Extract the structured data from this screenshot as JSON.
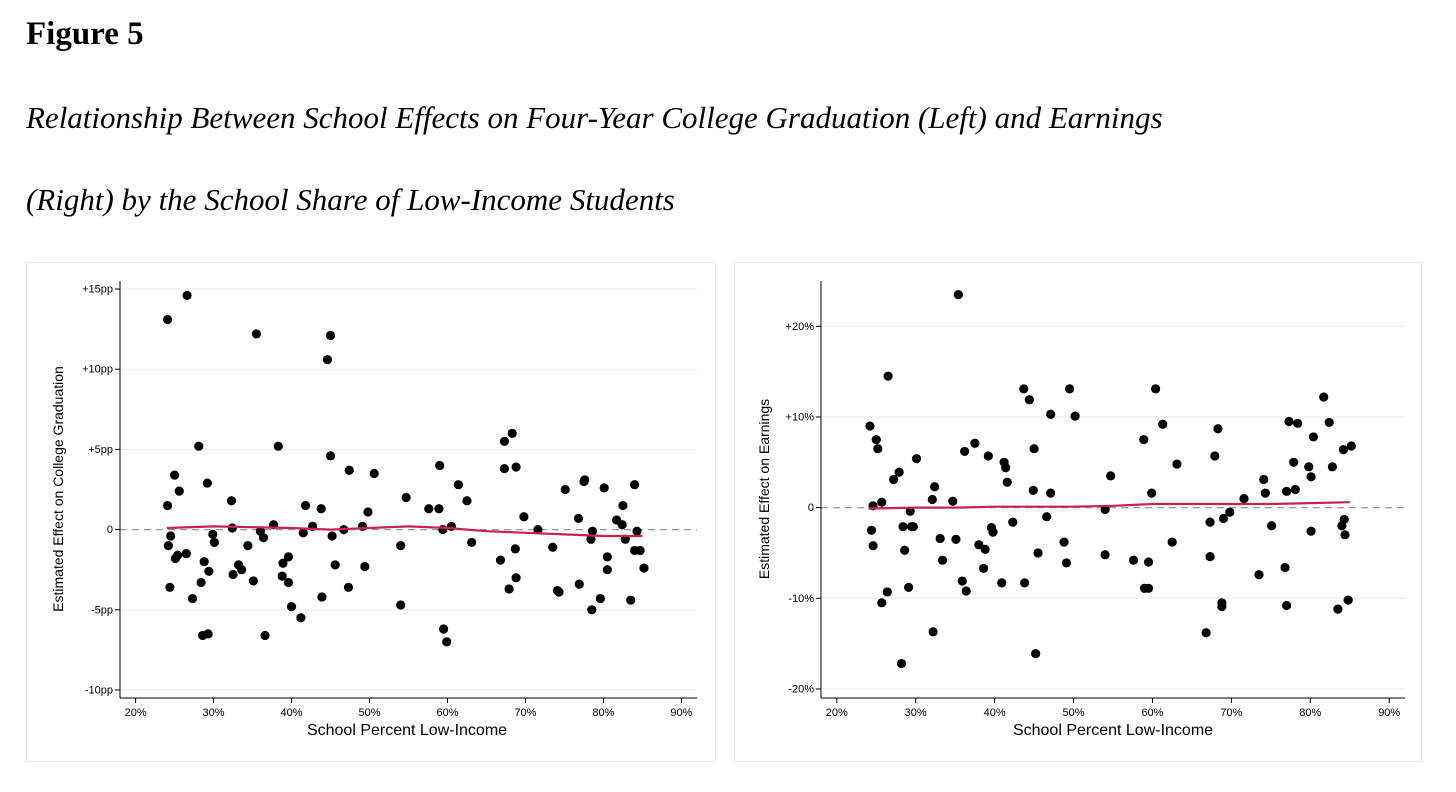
{
  "figure": {
    "label": "Figure 5",
    "caption_line1": "Relationship Between School Effects on Four-Year College Graduation (Left) and Earnings",
    "caption_line2": "(Right) by the School Share of Low-Income Students"
  },
  "colors": {
    "points": "#000000",
    "fit_line": "#c8224e",
    "zero_line": "#999999",
    "grid": "#e6eef2"
  },
  "chart_data": [
    {
      "type": "scatter",
      "title": "",
      "xlabel": "School Percent Low-Income",
      "ylabel": "Estimated Effect on College Graduation",
      "xlim": [
        18,
        92
      ],
      "ylim": [
        -10.5,
        15.5
      ],
      "x_ticks": [
        20,
        30,
        40,
        50,
        60,
        70,
        80,
        90
      ],
      "x_tick_labels": [
        "20%",
        "30%",
        "40%",
        "50%",
        "60%",
        "70%",
        "80%",
        "90%"
      ],
      "y_ticks": [
        -10,
        -5,
        0,
        5,
        10,
        15
      ],
      "y_tick_labels": [
        "-10pp",
        "-5pp",
        "0",
        "+5pp",
        "+10pp",
        "+15pp"
      ],
      "grid": true,
      "reference_line": 0,
      "points": [
        [
          24.1,
          13.1
        ],
        [
          26.6,
          14.6
        ],
        [
          24.1,
          1.5
        ],
        [
          24.2,
          -1.0
        ],
        [
          24.5,
          -0.4
        ],
        [
          24.4,
          -3.6
        ],
        [
          25.1,
          -1.8
        ],
        [
          25.0,
          3.4
        ],
        [
          25.6,
          2.4
        ],
        [
          25.4,
          -1.6
        ],
        [
          26.5,
          -1.5
        ],
        [
          27.3,
          -4.3
        ],
        [
          28.1,
          5.2
        ],
        [
          28.4,
          -3.3
        ],
        [
          28.8,
          -2.0
        ],
        [
          28.6,
          -6.6
        ],
        [
          29.2,
          2.9
        ],
        [
          29.3,
          -6.5
        ],
        [
          29.4,
          -2.6
        ],
        [
          29.9,
          -0.3
        ],
        [
          30.1,
          -0.8
        ],
        [
          32.3,
          1.8
        ],
        [
          32.4,
          0.1
        ],
        [
          32.5,
          -2.8
        ],
        [
          33.2,
          -2.2
        ],
        [
          33.6,
          -2.5
        ],
        [
          34.4,
          -1.0
        ],
        [
          35.1,
          -3.2
        ],
        [
          35.5,
          12.2
        ],
        [
          36.0,
          -0.1
        ],
        [
          36.4,
          -0.5
        ],
        [
          36.6,
          -6.6
        ],
        [
          37.7,
          0.3
        ],
        [
          38.3,
          5.2
        ],
        [
          38.8,
          -2.9
        ],
        [
          38.9,
          -2.1
        ],
        [
          39.6,
          -3.3
        ],
        [
          39.6,
          -1.7
        ],
        [
          40.0,
          -4.8
        ],
        [
          41.2,
          -5.5
        ],
        [
          41.5,
          -0.2
        ],
        [
          41.8,
          1.5
        ],
        [
          42.7,
          0.2
        ],
        [
          43.8,
          1.3
        ],
        [
          43.9,
          -4.2
        ],
        [
          44.6,
          10.6
        ],
        [
          45.0,
          12.1
        ],
        [
          45.0,
          4.6
        ],
        [
          45.2,
          -0.4
        ],
        [
          45.6,
          -2.2
        ],
        [
          46.7,
          0.0
        ],
        [
          47.3,
          -3.6
        ],
        [
          47.4,
          3.7
        ],
        [
          49.1,
          0.2
        ],
        [
          49.4,
          -2.3
        ],
        [
          49.8,
          1.1
        ],
        [
          50.6,
          3.5
        ],
        [
          54.0,
          -1.0
        ],
        [
          54.0,
          -4.7
        ],
        [
          54.7,
          2.0
        ],
        [
          57.6,
          1.3
        ],
        [
          58.9,
          1.3
        ],
        [
          59.0,
          4.0
        ],
        [
          59.5,
          -6.2
        ],
        [
          59.4,
          0.0
        ],
        [
          59.9,
          -7.0
        ],
        [
          60.5,
          0.2
        ],
        [
          61.4,
          2.8
        ],
        [
          62.5,
          1.8
        ],
        [
          63.1,
          -0.8
        ],
        [
          66.8,
          -1.9
        ],
        [
          67.3,
          3.8
        ],
        [
          67.3,
          5.5
        ],
        [
          67.9,
          -3.7
        ],
        [
          68.3,
          6.0
        ],
        [
          68.8,
          3.9
        ],
        [
          68.7,
          -1.2
        ],
        [
          68.8,
          -3.0
        ],
        [
          69.8,
          0.8
        ],
        [
          71.6,
          0.0
        ],
        [
          73.5,
          -1.1
        ],
        [
          74.1,
          -3.8
        ],
        [
          74.3,
          -3.9
        ],
        [
          75.1,
          2.5
        ],
        [
          76.9,
          -3.4
        ],
        [
          76.8,
          0.7
        ],
        [
          77.5,
          3.0
        ],
        [
          77.6,
          3.1
        ],
        [
          78.4,
          -0.6
        ],
        [
          78.6,
          -0.1
        ],
        [
          78.5,
          -5.0
        ],
        [
          79.6,
          -4.3
        ],
        [
          80.1,
          2.6
        ],
        [
          80.5,
          -2.5
        ],
        [
          80.5,
          -1.7
        ],
        [
          81.7,
          0.6
        ],
        [
          82.4,
          0.3
        ],
        [
          82.5,
          1.5
        ],
        [
          82.8,
          -0.6
        ],
        [
          83.5,
          -4.4
        ],
        [
          84.0,
          2.8
        ],
        [
          84.0,
          -1.3
        ],
        [
          84.3,
          -0.1
        ],
        [
          84.7,
          -1.3
        ],
        [
          85.2,
          -2.4
        ]
      ],
      "fit_line": [
        [
          24,
          0.1
        ],
        [
          30,
          0.2
        ],
        [
          40,
          0.1
        ],
        [
          45,
          0.0
        ],
        [
          50,
          0.1
        ],
        [
          55,
          0.2
        ],
        [
          60,
          0.1
        ],
        [
          65,
          -0.1
        ],
        [
          70,
          -0.2
        ],
        [
          75,
          -0.3
        ],
        [
          80,
          -0.4
        ],
        [
          85,
          -0.4
        ]
      ]
    },
    {
      "type": "scatter",
      "title": "",
      "xlabel": "School Percent Low-Income",
      "ylabel": "Estimated Effect on Earnings",
      "xlim": [
        18,
        92
      ],
      "ylim": [
        -21,
        25
      ],
      "x_ticks": [
        20,
        30,
        40,
        50,
        60,
        70,
        80,
        90
      ],
      "x_tick_labels": [
        "20%",
        "30%",
        "40%",
        "50%",
        "60%",
        "70%",
        "80%",
        "90%"
      ],
      "y_ticks": [
        -20,
        -10,
        0,
        10,
        20
      ],
      "y_tick_labels": [
        "-20%",
        "-10%",
        "0",
        "+10%",
        "+20%"
      ],
      "grid": true,
      "reference_line": 0,
      "points": [
        [
          35.4,
          23.5
        ],
        [
          24.2,
          9.0
        ],
        [
          24.4,
          -2.5
        ],
        [
          24.6,
          0.2
        ],
        [
          24.6,
          -4.2
        ],
        [
          25.0,
          7.5
        ],
        [
          25.2,
          6.5
        ],
        [
          25.7,
          -10.5
        ],
        [
          25.7,
          0.6
        ],
        [
          26.4,
          -9.3
        ],
        [
          26.5,
          14.5
        ],
        [
          27.2,
          3.1
        ],
        [
          27.9,
          3.9
        ],
        [
          28.2,
          -17.2
        ],
        [
          28.4,
          -2.1
        ],
        [
          28.6,
          -4.7
        ],
        [
          29.1,
          -8.8
        ],
        [
          29.3,
          -0.4
        ],
        [
          29.5,
          -2.1
        ],
        [
          29.7,
          -2.1
        ],
        [
          30.1,
          5.4
        ],
        [
          32.1,
          0.9
        ],
        [
          32.2,
          -13.7
        ],
        [
          32.4,
          2.3
        ],
        [
          33.1,
          -3.4
        ],
        [
          33.4,
          -5.8
        ],
        [
          34.7,
          0.7
        ],
        [
          35.1,
          -3.5
        ],
        [
          35.9,
          -8.1
        ],
        [
          36.2,
          6.2
        ],
        [
          36.4,
          -9.2
        ],
        [
          37.5,
          7.1
        ],
        [
          38.0,
          -4.1
        ],
        [
          38.6,
          -6.7
        ],
        [
          38.8,
          -4.6
        ],
        [
          39.2,
          5.7
        ],
        [
          39.6,
          -2.2
        ],
        [
          39.8,
          -2.7
        ],
        [
          40.9,
          -8.3
        ],
        [
          41.4,
          4.4
        ],
        [
          41.2,
          5.0
        ],
        [
          41.6,
          2.8
        ],
        [
          42.3,
          -1.6
        ],
        [
          43.7,
          13.1
        ],
        [
          43.8,
          -8.3
        ],
        [
          44.4,
          11.9
        ],
        [
          44.9,
          1.9
        ],
        [
          45.0,
          6.5
        ],
        [
          45.2,
          -16.1
        ],
        [
          45.5,
          -5.0
        ],
        [
          46.6,
          -1.0
        ],
        [
          47.1,
          10.3
        ],
        [
          47.1,
          1.6
        ],
        [
          48.8,
          -3.8
        ],
        [
          49.1,
          -6.1
        ],
        [
          49.5,
          13.1
        ],
        [
          50.2,
          10.1
        ],
        [
          54.0,
          -0.2
        ],
        [
          54.0,
          -5.2
        ],
        [
          54.7,
          3.5
        ],
        [
          57.6,
          -5.8
        ],
        [
          58.9,
          7.5
        ],
        [
          59.0,
          -8.9
        ],
        [
          59.5,
          -6.0
        ],
        [
          59.5,
          -8.9
        ],
        [
          59.9,
          1.6
        ],
        [
          60.4,
          13.1
        ],
        [
          61.3,
          9.2
        ],
        [
          62.5,
          -3.8
        ],
        [
          63.1,
          4.8
        ],
        [
          66.8,
          -13.8
        ],
        [
          67.3,
          -1.6
        ],
        [
          67.3,
          -5.4
        ],
        [
          67.9,
          5.7
        ],
        [
          68.3,
          8.7
        ],
        [
          68.8,
          -10.5
        ],
        [
          68.8,
          -10.9
        ],
        [
          69.0,
          -1.2
        ],
        [
          69.8,
          -0.5
        ],
        [
          71.6,
          1.0
        ],
        [
          73.5,
          -7.4
        ],
        [
          74.1,
          3.1
        ],
        [
          74.3,
          1.6
        ],
        [
          75.1,
          -2.0
        ],
        [
          76.8,
          -6.6
        ],
        [
          77.3,
          9.5
        ],
        [
          77.0,
          1.8
        ],
        [
          77.0,
          -10.8
        ],
        [
          77.9,
          5.0
        ],
        [
          78.1,
          2.0
        ],
        [
          78.4,
          9.3
        ],
        [
          79.8,
          4.5
        ],
        [
          80.1,
          -2.6
        ],
        [
          80.1,
          3.4
        ],
        [
          80.4,
          7.8
        ],
        [
          81.7,
          12.2
        ],
        [
          82.4,
          9.4
        ],
        [
          82.8,
          4.5
        ],
        [
          83.5,
          -11.2
        ],
        [
          84.0,
          -2.0
        ],
        [
          84.2,
          6.4
        ],
        [
          84.3,
          -1.3
        ],
        [
          84.4,
          -3.0
        ],
        [
          84.8,
          -10.2
        ],
        [
          85.2,
          6.8
        ]
      ],
      "fit_line": [
        [
          24,
          -0.1
        ],
        [
          30,
          0.0
        ],
        [
          35,
          0.0
        ],
        [
          40,
          0.1
        ],
        [
          45,
          0.1
        ],
        [
          50,
          0.1
        ],
        [
          55,
          0.2
        ],
        [
          60,
          0.4
        ],
        [
          65,
          0.4
        ],
        [
          70,
          0.4
        ],
        [
          75,
          0.4
        ],
        [
          80,
          0.5
        ],
        [
          85,
          0.6
        ]
      ]
    }
  ]
}
